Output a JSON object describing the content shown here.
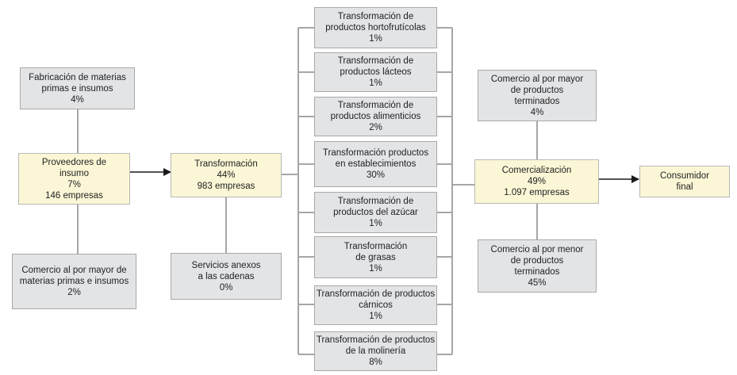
{
  "colors": {
    "gray_box": "#e3e4e6",
    "highlight_box": "#fbf7d6",
    "connector": "#a6a6a6",
    "arrow": "#1a1a1a"
  },
  "nodes": {
    "fabricacion": [
      "Fabricación de materias",
      "primas e insumos",
      "4%"
    ],
    "proveedores": [
      "Proveedores de",
      "insumo",
      "7%",
      "146 empresas"
    ],
    "comercio_mp": [
      "Comercio al por mayor de",
      "materias primas e insumos",
      "2%"
    ],
    "transformacion": [
      "Transformación",
      "44%",
      "983 empresas"
    ],
    "servicios": [
      "Servicios anexos",
      "a las cadenas",
      "0%"
    ],
    "t_hortofruticolas": [
      "Transformación de",
      "productos hortofrutícolas",
      "1%"
    ],
    "t_lacteos": [
      "Transformación de",
      "productos lácteos",
      "1%"
    ],
    "t_alimenticios": [
      "Transformación de",
      "productos alimenticios",
      "2%"
    ],
    "t_establecimientos": [
      "Transformación productos",
      "en establecimientos",
      "30%"
    ],
    "t_azucar": [
      "Transformación de",
      "productos del azúcar",
      "1%"
    ],
    "t_grasas": [
      "Transformación",
      "de grasas",
      "1%"
    ],
    "t_carnicos": [
      "Transformación de productos",
      "cárnicos",
      "1%"
    ],
    "t_molineria": [
      "Transformación de productos",
      "de la molinería",
      "8%"
    ],
    "comercio_mayor": [
      "Comercio al por mayor",
      "de productos",
      "terminados",
      "4%"
    ],
    "comercializacion": [
      "Comercialización",
      "49%",
      "1.097 empresas"
    ],
    "comercio_menor": [
      "Comercio al por menor",
      "de productos",
      "terminados",
      "45%"
    ],
    "consumidor": [
      "Consumidor",
      "final"
    ]
  }
}
